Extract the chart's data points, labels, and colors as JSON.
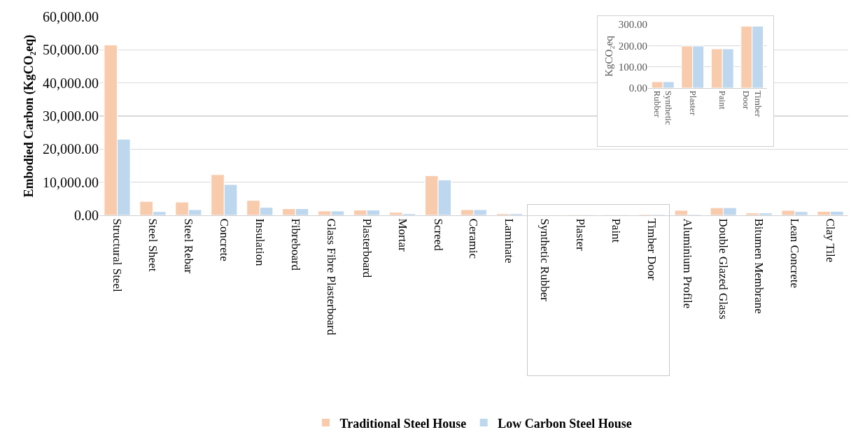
{
  "chart_data": [
    {
      "type": "bar",
      "ylabel": "Embodied Carbon (KgCO₂eq)",
      "categories": [
        "Structural Steel",
        "Steel Sheet",
        "Steel Rebar",
        "Concrete",
        "Insulation",
        "Fibreboard",
        "Glass Fibre Plasterboard",
        "Plasterboard",
        "Mortar",
        "Screed",
        "Ceramic",
        "Laminate",
        "Synthetic Rubber",
        "Plaster",
        "Paint",
        "Timber Door",
        "Aluminium Profile",
        "Double Glazed Glass",
        "Bitumen Membrane",
        "Lean Concrete",
        "Clay Tile"
      ],
      "series": [
        {
          "name": "Traditional Steel House",
          "color": "#f8cbad",
          "values": [
            51500,
            4200,
            4000,
            12300,
            4500,
            2000,
            1300,
            1600,
            900,
            12000,
            1700,
            500,
            30,
            198,
            185,
            292,
            1500,
            2300,
            700,
            1500,
            1200
          ]
        },
        {
          "name": "Low Carbon Steel House",
          "color": "#bdd7ee",
          "values": [
            23000,
            1100,
            1700,
            9300,
            2400,
            2000,
            1300,
            1600,
            500,
            10700,
            1700,
            500,
            30,
            198,
            185,
            292,
            300,
            2300,
            700,
            1100,
            1200
          ]
        }
      ],
      "ylim": [
        0,
        60000
      ],
      "yticks": [
        {
          "value": 0,
          "label": "0.00"
        },
        {
          "value": 10000,
          "label": "10,000.00"
        },
        {
          "value": 20000,
          "label": "20,000.00"
        },
        {
          "value": 30000,
          "label": "30,000.00"
        },
        {
          "value": 40000,
          "label": "40,000.00"
        },
        {
          "value": 50000,
          "label": "50,000.00"
        },
        {
          "value": 60000,
          "label": "60,000.00"
        }
      ],
      "grid": "y",
      "legend": "bottom"
    },
    {
      "type": "bar",
      "ylabel": "KgCO₂eq",
      "categories": [
        "Synthetic Rubber",
        "Plaster",
        "Paint",
        "Timber Door"
      ],
      "series": [
        {
          "color": "#f8cbad",
          "values": [
            30,
            198,
            185,
            292
          ]
        },
        {
          "color": "#bdd7ee",
          "values": [
            30,
            198,
            185,
            292
          ]
        }
      ],
      "ylim": [
        0,
        300
      ],
      "yticks": [
        {
          "value": 0,
          "label": "0.00"
        },
        {
          "value": 100,
          "label": "100.00"
        },
        {
          "value": 200,
          "label": "200.00"
        },
        {
          "value": 300,
          "label": "300.00"
        }
      ],
      "grid": "y"
    }
  ]
}
